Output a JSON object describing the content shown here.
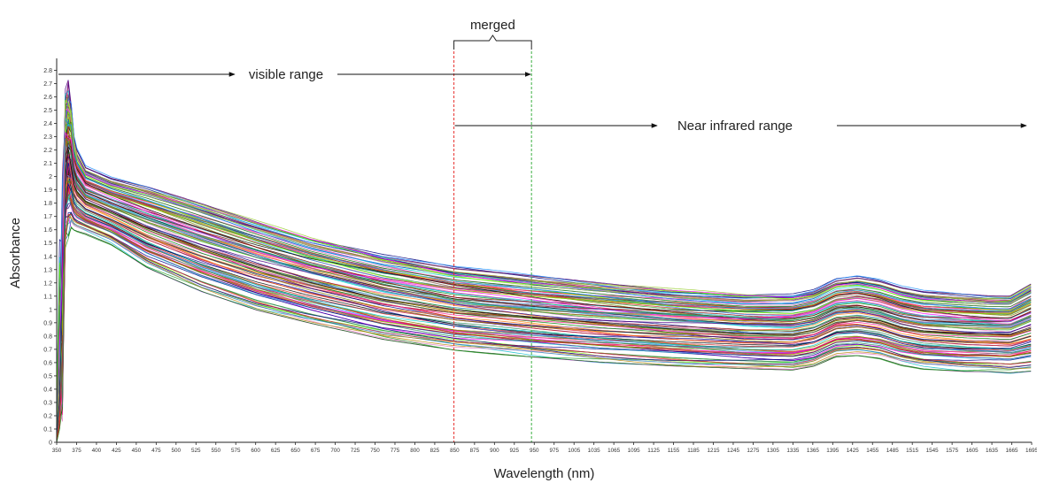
{
  "chart_data": {
    "type": "line",
    "title": "",
    "xlabel": "Wavelength (nm)",
    "ylabel": "Absorbance",
    "xlim": [
      350,
      1695
    ],
    "ylim": [
      0,
      2.85
    ],
    "grid": false,
    "legend": "none",
    "x_ticks": [
      350,
      375,
      400,
      425,
      450,
      475,
      500,
      525,
      550,
      575,
      600,
      625,
      650,
      675,
      700,
      725,
      750,
      775,
      800,
      825,
      850,
      875,
      900,
      925,
      950,
      975,
      1005,
      1035,
      1065,
      1095,
      1125,
      1155,
      1185,
      1215,
      1245,
      1275,
      1305,
      1335,
      1365,
      1395,
      1425,
      1455,
      1485,
      1515,
      1545,
      1575,
      1605,
      1635,
      1665,
      1695
    ],
    "y_ticks": [
      "0",
      "0.1",
      "0.2",
      "0.3",
      "0.4",
      "0.5",
      "0.6",
      "0.7",
      "0.8",
      "0.9",
      "1",
      "1.1",
      "1.2",
      "1.3",
      "1.4",
      "1.5",
      "1.6",
      "1.7",
      "1.8",
      "1.9",
      "2",
      "2.1",
      "2.2",
      "2.3",
      "2.4",
      "2.5",
      "2.6",
      "2.7",
      "2.8"
    ],
    "spectra_profile": {
      "x": [
        350,
        355,
        362,
        368,
        375,
        390,
        425,
        475,
        550,
        625,
        700,
        800,
        900,
        1005,
        1100,
        1200,
        1300,
        1365,
        1395,
        1425,
        1455,
        1485,
        1515,
        1545,
        1575,
        1605,
        1635,
        1665,
        1695
      ],
      "upper": [
        0.3,
        1.9,
        2.55,
        2.7,
        2.25,
        2.08,
        2.0,
        1.94,
        1.82,
        1.69,
        1.56,
        1.43,
        1.33,
        1.27,
        1.22,
        1.17,
        1.13,
        1.13,
        1.16,
        1.24,
        1.26,
        1.23,
        1.18,
        1.15,
        1.14,
        1.13,
        1.12,
        1.12,
        1.22
      ],
      "lower": [
        0.0,
        0.6,
        1.4,
        1.6,
        1.58,
        1.56,
        1.48,
        1.3,
        1.12,
        0.98,
        0.88,
        0.76,
        0.68,
        0.63,
        0.59,
        0.56,
        0.54,
        0.53,
        0.56,
        0.63,
        0.64,
        0.62,
        0.57,
        0.54,
        0.53,
        0.52,
        0.52,
        0.51,
        0.52
      ]
    },
    "series_count": 120,
    "palette": [
      "#1f77b4",
      "#d62728",
      "#2ca02c",
      "#9467bd",
      "#ff7f0e",
      "#17becf",
      "#8c564b",
      "#e377c2",
      "#000080",
      "#008000",
      "#800000",
      "#808000",
      "#00ced1",
      "#ff1493",
      "#4b0082",
      "#000000",
      "#7fff00",
      "#dc143c",
      "#1e90ff",
      "#b8860b",
      "#9acd32",
      "#00008b",
      "#ff00ff",
      "#2e8b57"
    ],
    "annotations": [
      {
        "text": "merged",
        "kind": "bracket",
        "x_from": 898,
        "x_to": 1005
      },
      {
        "text": "visible range",
        "kind": "double-arrow",
        "x_from": 350,
        "x_to": 1005
      },
      {
        "text": "Near infrared range",
        "kind": "double-arrow",
        "x_from": 898,
        "x_to": 1695
      }
    ],
    "vertical_markers": [
      {
        "x": 898,
        "color": "#e8302e"
      },
      {
        "x": 1005,
        "color": "#3cb043"
      }
    ]
  }
}
